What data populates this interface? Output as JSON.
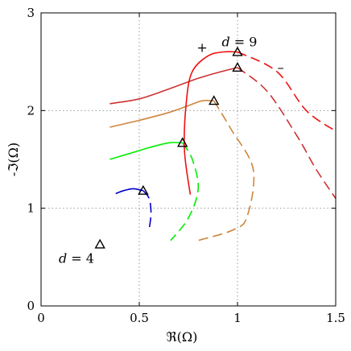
{
  "chart_data": {
    "type": "line",
    "xlabel": "ℜ(Ω)",
    "ylabel": "-ℑ(Ω)",
    "xlim": [
      0,
      1.5
    ],
    "ylim": [
      0,
      3
    ],
    "x_ticks": [
      "0",
      "0.5",
      "1",
      "1.5"
    ],
    "y_ticks": [
      "0",
      "1",
      "2",
      "3"
    ],
    "grid": true,
    "annotations": [
      {
        "var": "d",
        "text": " = 9",
        "x": 0.92,
        "y": 2.66
      },
      {
        "var": "d",
        "text": " = 4",
        "x": 0.09,
        "y": 0.44
      }
    ],
    "signs": [
      {
        "text": "+",
        "x": 0.82,
        "y": 2.6
      },
      {
        "text": "–",
        "x": 1.22,
        "y": 2.4
      }
    ],
    "markers": [
      {
        "x": 0.3,
        "y": 0.63
      },
      {
        "x": 0.52,
        "y": 1.18
      },
      {
        "x": 0.72,
        "y": 1.67
      },
      {
        "x": 0.88,
        "y": 2.1
      },
      {
        "x": 1.0,
        "y": 2.44
      },
      {
        "x": 1.0,
        "y": 2.6
      }
    ],
    "series": [
      {
        "color": "#0000cc",
        "solid": [
          [
            0.38,
            1.15
          ],
          [
            0.42,
            1.18
          ],
          [
            0.47,
            1.2
          ],
          [
            0.52,
            1.18
          ]
        ],
        "dashed": [
          [
            0.52,
            1.18
          ],
          [
            0.55,
            1.1
          ],
          [
            0.56,
            0.95
          ],
          [
            0.55,
            0.78
          ]
        ]
      },
      {
        "color": "#00ee00",
        "solid": [
          [
            0.35,
            1.5
          ],
          [
            0.45,
            1.56
          ],
          [
            0.55,
            1.62
          ],
          [
            0.65,
            1.67
          ],
          [
            0.72,
            1.67
          ]
        ],
        "dashed": [
          [
            0.72,
            1.67
          ],
          [
            0.77,
            1.5
          ],
          [
            0.8,
            1.2
          ],
          [
            0.75,
            0.9
          ],
          [
            0.66,
            0.67
          ]
        ]
      },
      {
        "color": "#cd853f",
        "solid": [
          [
            0.35,
            1.83
          ],
          [
            0.5,
            1.9
          ],
          [
            0.65,
            1.98
          ],
          [
            0.75,
            2.05
          ],
          [
            0.82,
            2.1
          ],
          [
            0.88,
            2.1
          ]
        ],
        "dashed": [
          [
            0.88,
            2.1
          ],
          [
            0.97,
            1.8
          ],
          [
            1.08,
            1.4
          ],
          [
            1.05,
            0.92
          ],
          [
            0.98,
            0.78
          ],
          [
            0.8,
            0.67
          ]
        ]
      },
      {
        "color": "#cc3333",
        "solid": [
          [
            0.35,
            2.07
          ],
          [
            0.5,
            2.12
          ],
          [
            0.65,
            2.22
          ],
          [
            0.8,
            2.33
          ],
          [
            0.92,
            2.4
          ],
          [
            1.0,
            2.44
          ]
        ],
        "dashed": [
          [
            1.0,
            2.44
          ],
          [
            1.15,
            2.2
          ],
          [
            1.3,
            1.75
          ],
          [
            1.4,
            1.4
          ],
          [
            1.5,
            1.1
          ]
        ]
      },
      {
        "color": "#ee1111",
        "solid": [
          [
            0.76,
            1.14
          ],
          [
            0.73,
            1.6
          ],
          [
            0.74,
            2.1
          ],
          [
            0.77,
            2.4
          ],
          [
            0.85,
            2.56
          ],
          [
            0.93,
            2.6
          ],
          [
            1.0,
            2.6
          ]
        ],
        "dashed": [
          [
            1.0,
            2.6
          ],
          [
            1.2,
            2.4
          ],
          [
            1.35,
            2.0
          ],
          [
            1.5,
            1.79
          ]
        ]
      }
    ]
  }
}
